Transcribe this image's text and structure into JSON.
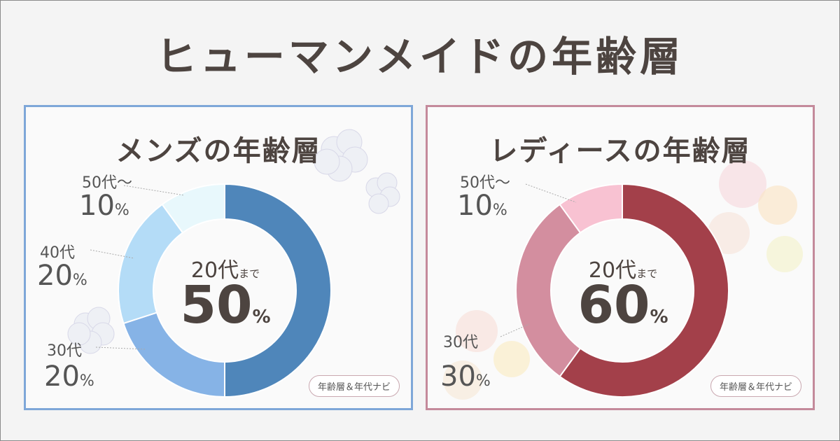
{
  "title": "ヒューマンメイドの年齢層",
  "badge": "年齢層＆年代ナビ",
  "percent_sign": "%",
  "colors": {
    "men_border": "#7ea7d8",
    "women_border": "#c48a9b",
    "title_text": "#4d4440"
  },
  "men": {
    "heading": "メンズの年齢層",
    "center_label": "20代",
    "center_suffix": "まで",
    "center_value": "50",
    "labels": [
      {
        "age": "50代～",
        "pct": "10"
      },
      {
        "age": "40代",
        "pct": "20"
      },
      {
        "age": "30代",
        "pct": "20"
      }
    ]
  },
  "women": {
    "heading": "レディースの年齢層",
    "center_label": "20代",
    "center_suffix": "まで",
    "center_value": "60",
    "labels": [
      {
        "age": "50代～",
        "pct": "10"
      },
      {
        "age": "30代",
        "pct": "30"
      }
    ]
  },
  "chart_data": [
    {
      "type": "pie",
      "title": "メンズの年齢層",
      "categories": [
        "20代まで",
        "30代",
        "40代",
        "50代～"
      ],
      "values": [
        50,
        20,
        20,
        10
      ],
      "colors": [
        "#4f86ba",
        "#86b3e6",
        "#b4dcf7",
        "#e8f8fc"
      ]
    },
    {
      "type": "pie",
      "title": "レディースの年齢層",
      "categories": [
        "20代まで",
        "30代",
        "50代～"
      ],
      "values": [
        60,
        30,
        10
      ],
      "colors": [
        "#a3404a",
        "#d38e9f",
        "#f8c2d2"
      ]
    }
  ]
}
